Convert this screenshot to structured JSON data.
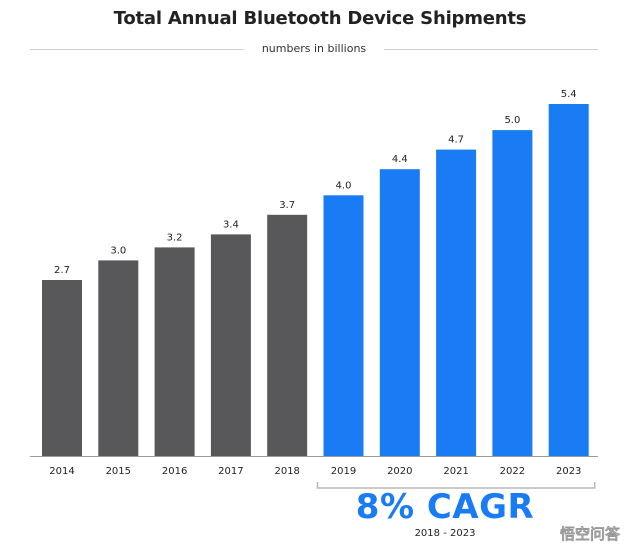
{
  "chart_data": {
    "type": "bar",
    "title": "Total Annual Bluetooth Device Shipments",
    "subtitle": "numbers in billions",
    "categories": [
      "2014",
      "2015",
      "2016",
      "2017",
      "2018",
      "2019",
      "2020",
      "2021",
      "2022",
      "2023"
    ],
    "values": [
      2.7,
      3.0,
      3.2,
      3.4,
      3.7,
      4.0,
      4.4,
      4.7,
      5.0,
      5.4
    ],
    "value_labels": [
      "2.7",
      "3.0",
      "3.2",
      "3.4",
      "3.7",
      "4.0",
      "4.4",
      "4.7",
      "5.0",
      "5.4"
    ],
    "ylim": [
      0,
      5.4
    ],
    "grid": false,
    "colors": {
      "historical": "#58585a",
      "forecast": "#1a7cf5",
      "axis": "#9a9a9a",
      "label": "#222222"
    },
    "forecast_from": "2019",
    "annotation": {
      "headline": "8% CAGR",
      "range": "2018 - 2023"
    }
  },
  "watermark": {
    "text": "悟空问答"
  }
}
